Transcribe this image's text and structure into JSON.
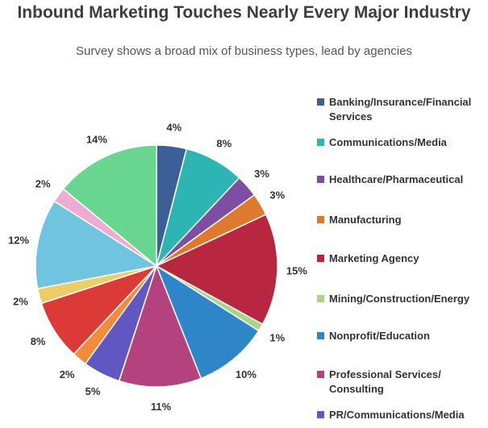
{
  "chart_data": {
    "type": "pie",
    "title": "Inbound Marketing Touches Nearly Every Major Industry",
    "subtitle": "Survey shows a broad mix of business types, lead by agencies",
    "legend_position": "right",
    "slices": [
      {
        "label": "Banking/Insurance/Financial Services",
        "value": 4,
        "display": "4%",
        "color": "#3b5f96"
      },
      {
        "label": "Communications/Media",
        "value": 8,
        "display": "8%",
        "color": "#2db5b3"
      },
      {
        "label": "Healthcare/Pharmaceutical",
        "value": 3,
        "display": "3%",
        "color": "#7e4ea3"
      },
      {
        "label": "Manufacturing",
        "value": 3,
        "display": "3%",
        "color": "#de7a2e"
      },
      {
        "label": "Marketing Agency",
        "value": 15,
        "display": "15%",
        "color": "#b8273f"
      },
      {
        "label": "Mining/Construction/Energy",
        "value": 1,
        "display": "1%",
        "color": "#a9d48a"
      },
      {
        "label": "Nonprofit/Education",
        "value": 10,
        "display": "10%",
        "color": "#2e86c8"
      },
      {
        "label": "Professional Services/ Consulting",
        "value": 11,
        "display": "11%",
        "color": "#b4427f"
      },
      {
        "label": "PR/Communications/Media",
        "value": 5,
        "display": "5%",
        "color": "#6157c2"
      },
      {
        "label": "",
        "value": 2,
        "display": "2%",
        "color": "#f58a3c"
      },
      {
        "label": "",
        "value": 8,
        "display": "8%",
        "color": "#dc3a36"
      },
      {
        "label": "",
        "value": 2,
        "display": "2%",
        "color": "#ebcd69"
      },
      {
        "label": "",
        "value": 12,
        "display": "12%",
        "color": "#70c4df"
      },
      {
        "label": "",
        "value": 2,
        "display": "2%",
        "color": "#edadd3"
      },
      {
        "label": "",
        "value": 14,
        "display": "14%",
        "color": "#68d690"
      }
    ]
  }
}
